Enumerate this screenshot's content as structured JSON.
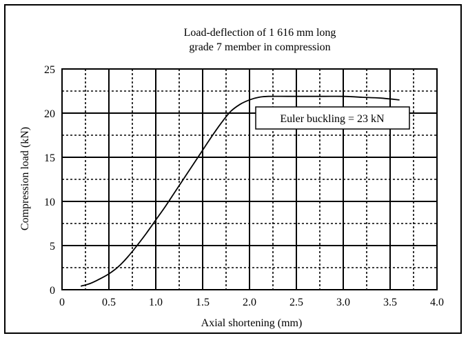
{
  "chart_data": {
    "type": "line",
    "title_lines": [
      "Load-deflection of 1 616 mm long",
      "grade 7 member in compression"
    ],
    "xlabel": "Axial shortening (mm)",
    "ylabel": "Compression load (kN)",
    "xlim": [
      0,
      4.0
    ],
    "ylim": [
      0,
      25
    ],
    "x_ticks": [
      0,
      0.5,
      1.0,
      1.5,
      2.0,
      2.5,
      3.0,
      3.5,
      4.0
    ],
    "x_tick_labels": [
      "0",
      "0.5",
      "1.0",
      "1.5",
      "2.0",
      "2.5",
      "3.0",
      "3.5",
      "4.0"
    ],
    "y_ticks": [
      0,
      5,
      10,
      15,
      20,
      25
    ],
    "y_tick_labels": [
      "0",
      "5",
      "10",
      "15",
      "20",
      "25"
    ],
    "grid": true,
    "annotation": "Euler buckling = 23 kN",
    "series": [
      {
        "x": [
          0.2,
          0.3,
          0.4,
          0.5,
          0.6,
          0.7,
          0.8,
          0.9,
          1.0,
          1.1,
          1.2,
          1.3,
          1.4,
          1.5,
          1.6,
          1.7,
          1.8,
          1.9,
          2.0,
          2.1,
          2.2,
          2.4,
          2.6,
          2.8,
          3.0,
          3.2,
          3.4,
          3.6
        ],
        "values": [
          0.4,
          0.7,
          1.2,
          1.8,
          2.6,
          3.7,
          5.0,
          6.4,
          7.9,
          9.4,
          11.0,
          12.6,
          14.2,
          15.8,
          17.4,
          18.9,
          20.2,
          21.0,
          21.5,
          21.8,
          21.9,
          21.9,
          21.9,
          21.9,
          21.9,
          21.8,
          21.7,
          21.5
        ]
      }
    ]
  }
}
